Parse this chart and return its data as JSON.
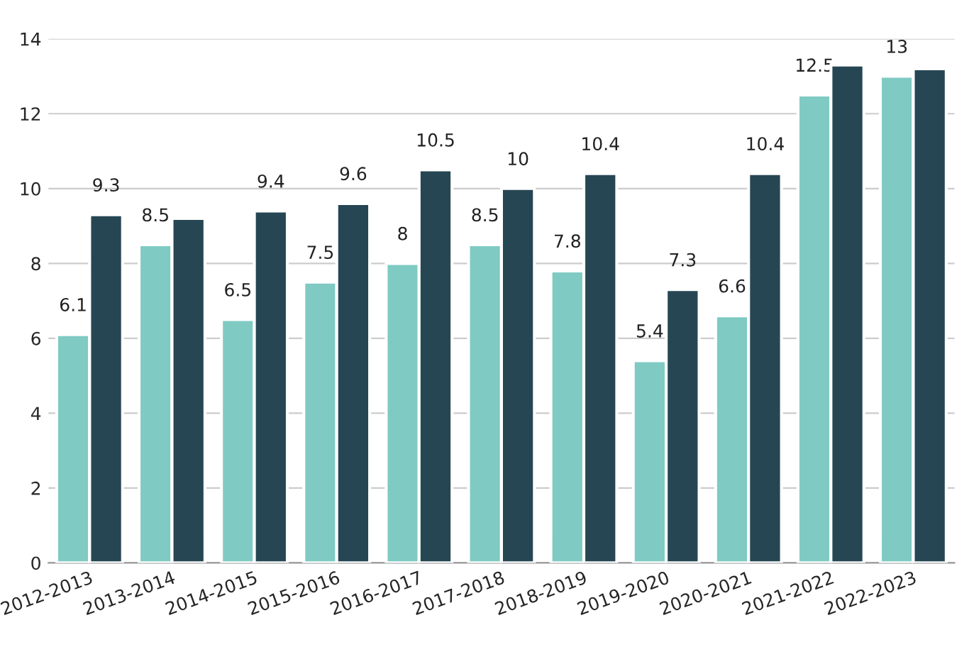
{
  "chart_data": {
    "type": "bar",
    "categories": [
      "2012-2013",
      "2013-2014",
      "2014-2015",
      "2015-2016",
      "2016-2017",
      "2017-2018",
      "2018-2019",
      "2019-2020",
      "2020-2021",
      "2021-2022",
      "2022-2023"
    ],
    "series": [
      {
        "color": "#7fcac3",
        "values": [
          6.1,
          8.5,
          6.5,
          7.5,
          8,
          8.5,
          7.8,
          5.4,
          6.6,
          12.5,
          13
        ],
        "value_labels": [
          "6.1",
          "8.5",
          "6.5",
          "7.5",
          "8",
          "8.5",
          "7.8",
          "5.4",
          "6.6",
          "12.5",
          "13"
        ]
      },
      {
        "color": "#264653",
        "values": [
          9.3,
          9.2,
          9.4,
          9.6,
          10.5,
          10,
          10.4,
          7.3,
          10.4,
          13.3,
          13.2
        ],
        "value_labels": [
          "9.3",
          null,
          "9.4",
          "9.6",
          "10.5",
          "10",
          "10.4",
          "7.3",
          "10.4",
          null,
          null
        ]
      }
    ],
    "ylim": [
      0,
      14
    ],
    "yticks": [
      0,
      2,
      4,
      6,
      8,
      10,
      12,
      14
    ],
    "grid": "y",
    "legend": false
  }
}
